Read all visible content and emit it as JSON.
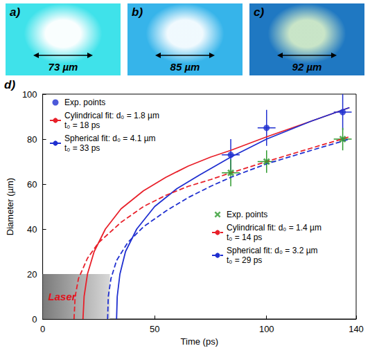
{
  "images": [
    {
      "label": "a)",
      "scale_bar": "73 µm"
    },
    {
      "label": "b)",
      "scale_bar": "85 µm"
    },
    {
      "label": "c)",
      "scale_bar": "92 µm"
    }
  ],
  "chart_data": {
    "type": "line",
    "label": "d)",
    "xlabel": "Time (ps)",
    "ylabel": "Diameter (µm)",
    "xlim": [
      0,
      140
    ],
    "xticks": [
      0,
      50,
      100,
      140
    ],
    "ylim": [
      0,
      100
    ],
    "yticks": [
      0,
      20,
      40,
      60,
      80,
      100
    ],
    "grid": false,
    "annotations": [
      {
        "text": "Laser",
        "x": [
          0,
          30
        ],
        "y": [
          0,
          20
        ]
      }
    ],
    "series": [
      {
        "name": "Exp. points",
        "type": "scatter",
        "marker": "circle",
        "color": "#1f2fd0",
        "legend": "upper left",
        "x": [
          84,
          100,
          134
        ],
        "values": [
          73,
          85,
          92
        ],
        "x_error": [
          4,
          4,
          4
        ],
        "y_error": [
          7,
          8,
          8
        ]
      },
      {
        "name": "Cylindrical fit: d₀ = 1.8 µm\nt₀ = 18 ps",
        "type": "line",
        "line_style": "solid",
        "color": "#e8202a",
        "legend": "upper left",
        "x": [
          18,
          18.5,
          20,
          23,
          28,
          35,
          45,
          55,
          65,
          75,
          84,
          100,
          120,
          137
        ],
        "values": [
          0,
          10,
          20,
          30,
          40,
          49,
          57,
          63,
          68,
          72,
          75,
          81,
          88,
          94
        ]
      },
      {
        "name": "Spherical fit: d₀ = 4.1 µm\nt₀ = 33 ps",
        "type": "line",
        "line_style": "solid",
        "color": "#1f2fd0",
        "legend": "upper left",
        "x": [
          33,
          33.3,
          34.5,
          37,
          42,
          50,
          60,
          70,
          84,
          100,
          120,
          137
        ],
        "values": [
          0,
          10,
          20,
          30,
          40,
          50,
          58,
          64,
          72,
          80,
          88,
          94
        ]
      },
      {
        "name": "Exp. points",
        "type": "scatter",
        "marker": "x",
        "color": "#2e9a2e",
        "legend": "center right",
        "x": [
          84,
          100,
          134
        ],
        "values": [
          65,
          70,
          80
        ],
        "x_error": [
          4,
          4,
          4
        ],
        "y_error": [
          6,
          5,
          5
        ]
      },
      {
        "name": "Cylindrical fit: d₀ = 1.4 µm\nt₀ = 14 ps",
        "type": "line",
        "line_style": "dashed",
        "color": "#e8202a",
        "legend": "center right",
        "x": [
          14,
          14.5,
          16,
          20,
          25,
          35,
          45,
          55,
          65,
          75,
          84,
          100,
          120,
          137
        ],
        "values": [
          0,
          10,
          18,
          27,
          34,
          43,
          50,
          55,
          59,
          62,
          65,
          70,
          76,
          81
        ]
      },
      {
        "name": "Spherical fit: d₀ = 3.2 µm\nt₀ = 29 ps",
        "type": "line",
        "line_style": "dashed",
        "color": "#1f2fd0",
        "legend": "center right",
        "x": [
          29,
          29.3,
          30.5,
          33,
          38,
          45,
          55,
          65,
          75,
          84,
          100,
          120,
          137
        ],
        "values": [
          0,
          10,
          18,
          26,
          34,
          41,
          48,
          54,
          59,
          63,
          69,
          75,
          80
        ]
      }
    ]
  }
}
